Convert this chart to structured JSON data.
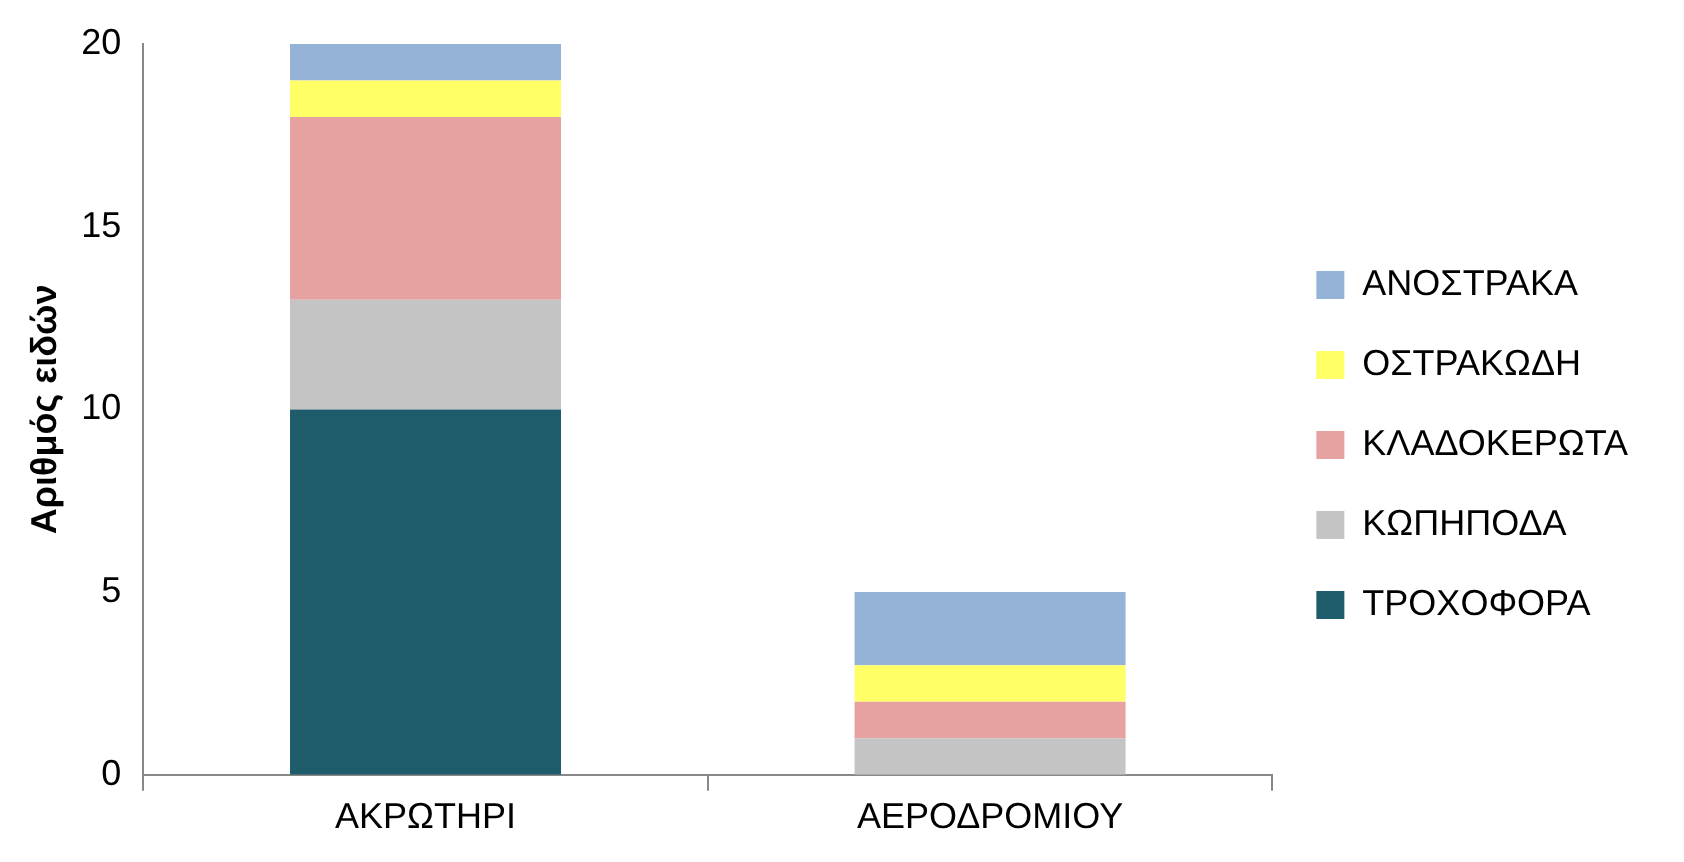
{
  "chart_data": {
    "type": "bar",
    "stacked": true,
    "ylabel": "Αριθμός ειδών",
    "categories": [
      "ΑΚΡΩΤΗΡΙ",
      "ΑΕΡΟΔΡΟΜΙΟΥ"
    ],
    "series": [
      {
        "name": "ΤΡΟΧΟΦΟΡΑ",
        "color": "#1f5c6b",
        "values": [
          10,
          0
        ]
      },
      {
        "name": "ΚΩΠΗΠΟΔΑ",
        "color": "#c4c4c4",
        "values": [
          3,
          1
        ]
      },
      {
        "name": "ΚΛΑΔΟΚΕΡΩΤΑ",
        "color": "#e6a1a1",
        "values": [
          5,
          1
        ]
      },
      {
        "name": "ΟΣΤΡΑΚΩΔΗ",
        "color": "#ffff66",
        "values": [
          1,
          1
        ]
      },
      {
        "name": "ΑΝΟΣΤΡΑΚΑ",
        "color": "#95b3d7",
        "values": [
          1,
          2
        ]
      }
    ],
    "ylim": [
      0,
      20
    ],
    "yticks": [
      0,
      5,
      10,
      15,
      20
    ],
    "grid": false,
    "legend": "right"
  }
}
